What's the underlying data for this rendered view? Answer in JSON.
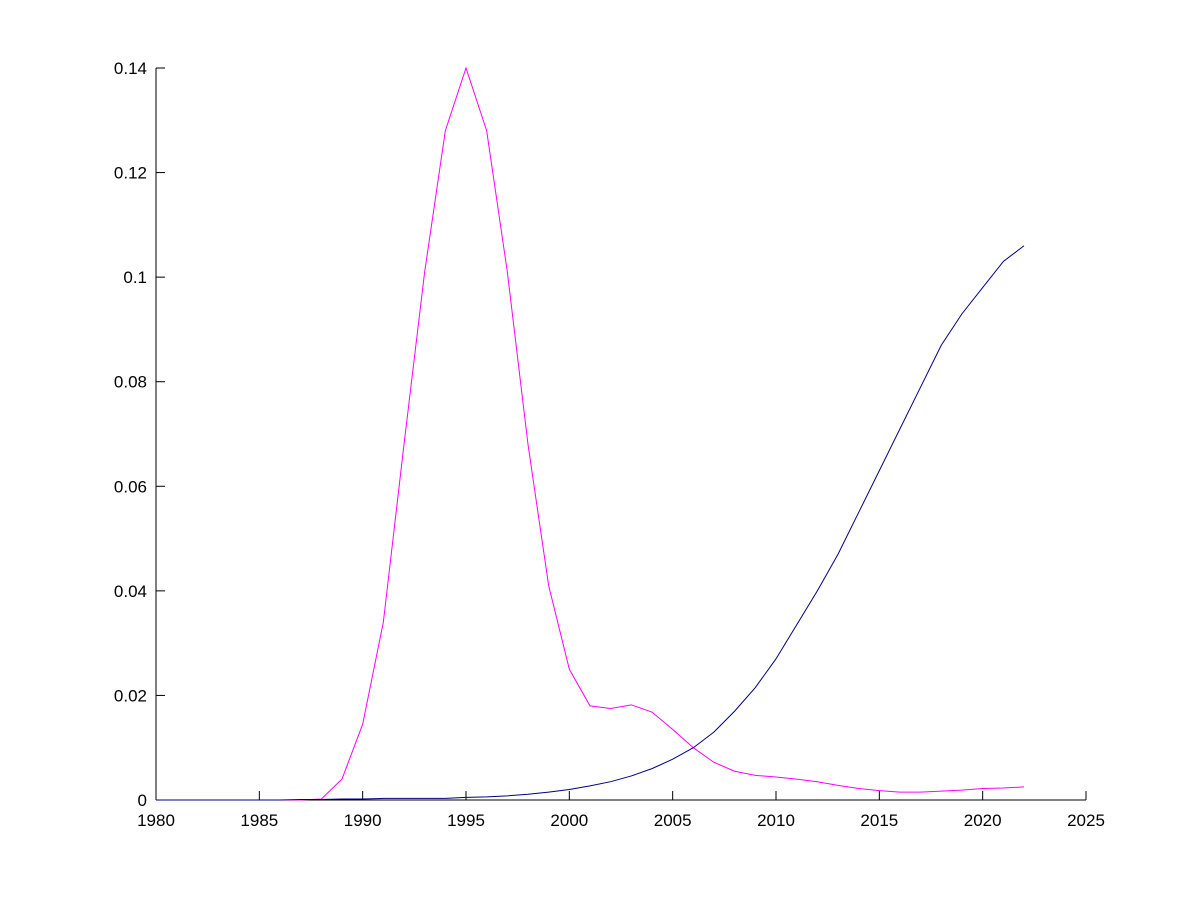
{
  "chart_data": {
    "type": "line",
    "x": [
      1980,
      1981,
      1982,
      1983,
      1984,
      1985,
      1986,
      1987,
      1988,
      1989,
      1990,
      1991,
      1992,
      1993,
      1994,
      1995,
      1996,
      1997,
      1998,
      1999,
      2000,
      2001,
      2002,
      2003,
      2004,
      2005,
      2006,
      2007,
      2008,
      2009,
      2010,
      2011,
      2012,
      2013,
      2014,
      2015,
      2016,
      2017,
      2018,
      2019,
      2020,
      2021,
      2022
    ],
    "series": [
      {
        "color": "#ff00ff",
        "values": [
          0,
          0,
          0,
          0,
          0,
          0,
          0,
          0,
          0.0002,
          0.004,
          0.0145,
          0.034,
          0.068,
          0.101,
          0.128,
          0.14,
          0.128,
          0.101,
          0.068,
          0.041,
          0.025,
          0.018,
          0.0175,
          0.0182,
          0.0168,
          0.0135,
          0.01,
          0.0072,
          0.0055,
          0.0047,
          0.0044,
          0.004,
          0.0035,
          0.0028,
          0.0022,
          0.0018,
          0.0015,
          0.0015,
          0.0017,
          0.0019,
          0.0022,
          0.0023,
          0.0025
        ]
      },
      {
        "color": "#000080",
        "values": [
          0,
          0,
          0,
          0,
          0,
          0,
          0,
          0.0001,
          0.0001,
          0.0002,
          0.0002,
          0.0003,
          0.0003,
          0.0003,
          0.0003,
          0.0005,
          0.0006,
          0.0008,
          0.0011,
          0.0015,
          0.002,
          0.0027,
          0.0035,
          0.0046,
          0.006,
          0.0078,
          0.01,
          0.013,
          0.017,
          0.0215,
          0.027,
          0.0335,
          0.04,
          0.047,
          0.055,
          0.063,
          0.071,
          0.079,
          0.087,
          0.093,
          0.098,
          0.103,
          0.106
        ]
      }
    ],
    "xlim": [
      1980,
      2025
    ],
    "xticks": [
      1980,
      1985,
      1990,
      1995,
      2000,
      2005,
      2010,
      2015,
      2020,
      2025
    ],
    "ylim": [
      0,
      0.14
    ],
    "yticks": [
      0,
      0.02,
      0.04,
      0.06,
      0.08,
      0.1,
      0.12,
      0.14
    ]
  }
}
